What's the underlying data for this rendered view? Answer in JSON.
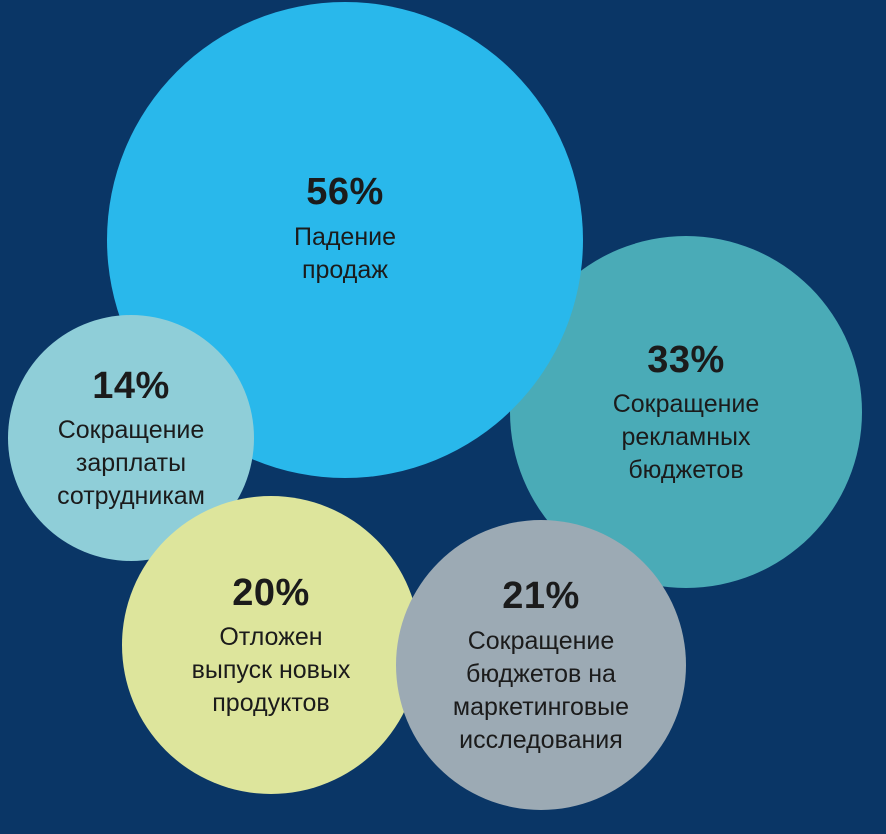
{
  "background_color": "#0a3666",
  "text_color": "#1b1b1b",
  "chart_data": {
    "type": "bubble",
    "title": "",
    "unit": "%",
    "legend": "none",
    "axes": "none",
    "items": [
      {
        "value": 56,
        "pct": "56%",
        "label": "Падение\nпродаж",
        "color": "#29b8eb"
      },
      {
        "value": 33,
        "pct": "33%",
        "label": "Сокращение\nрекламных\nбюджетов",
        "color": "#4aabb7"
      },
      {
        "value": 14,
        "pct": "14%",
        "label": "Сокращение\nзарплаты\nсотрудникам",
        "color": "#8fced8"
      },
      {
        "value": 20,
        "pct": "20%",
        "label": "Отложен\nвыпуск новых\nпродуктов",
        "color": "#dde59c"
      },
      {
        "value": 21,
        "pct": "21%",
        "label": "Сокращение\nбюджетов на\nмаркетинговые\nисследования",
        "color": "#9caab4"
      }
    ]
  }
}
